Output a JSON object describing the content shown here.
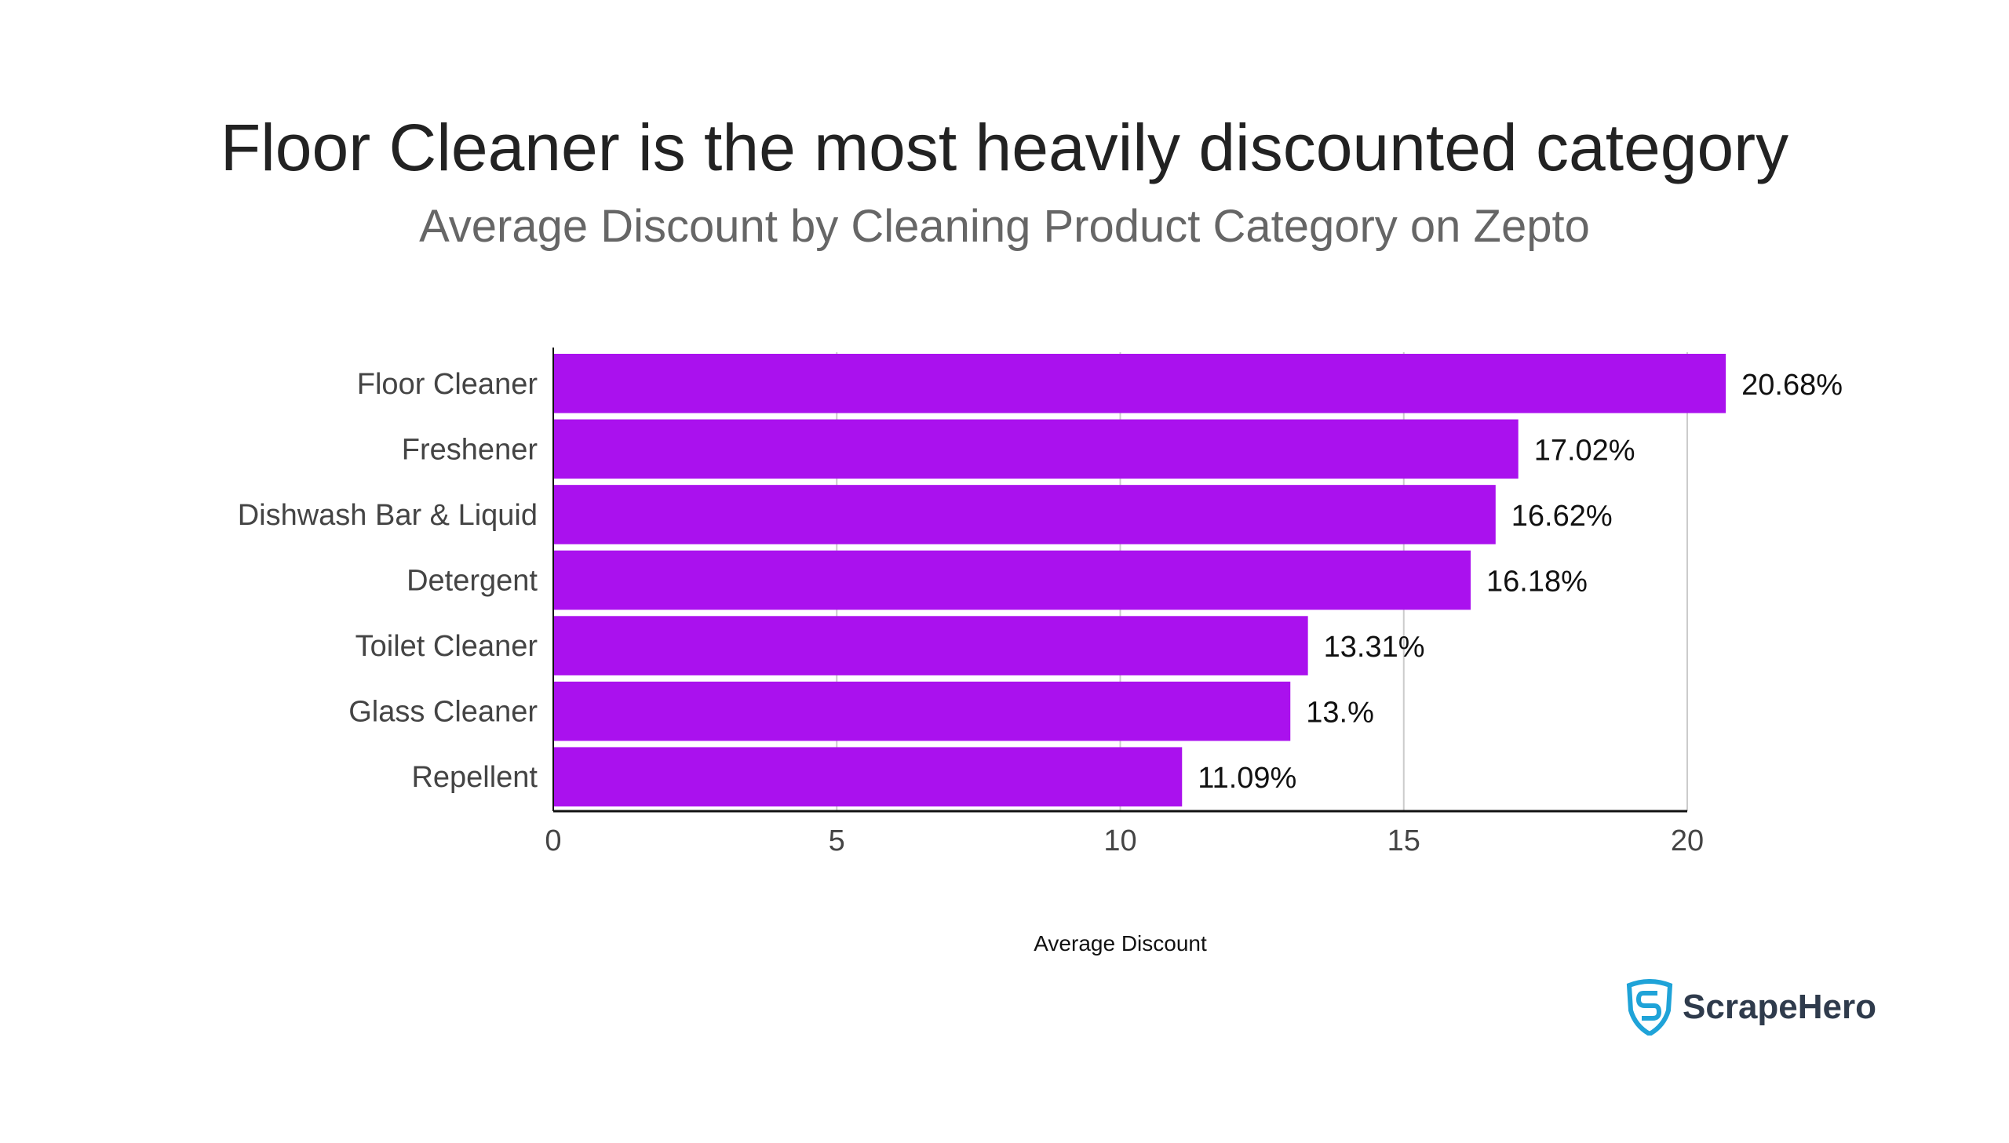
{
  "chart_data": {
    "type": "bar",
    "orientation": "horizontal",
    "title": "Floor Cleaner is the most heavily discounted category",
    "subtitle": "Average Discount by Cleaning Product Category on Zepto",
    "xlabel": "Average Discount",
    "ylabel": "",
    "xlim": [
      0,
      20
    ],
    "xticks": [
      "0",
      "5",
      "10",
      "15",
      "20"
    ],
    "grid": true,
    "bar_color": "#AA11EE",
    "categories": [
      "Floor Cleaner",
      "Freshener",
      "Dishwash Bar & Liquid",
      "Detergent",
      "Toilet Cleaner",
      "Glass Cleaner",
      "Repellent"
    ],
    "values": [
      20.68,
      17.02,
      16.62,
      16.18,
      13.31,
      13.0,
      11.09
    ],
    "data_labels": [
      "20.68%",
      "17.02%",
      "16.62%",
      "16.18%",
      "13.31%",
      "13.%",
      "11.09%"
    ]
  },
  "logo": {
    "text": "ScrapeHero",
    "color": "#1fa3d8"
  }
}
